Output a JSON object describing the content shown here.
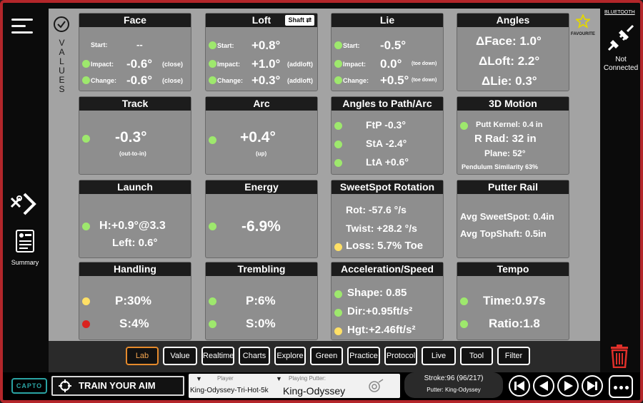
{
  "values_label": "VALUES",
  "summary_label": "Summary",
  "right": {
    "bluetooth_label": "BLUETOOTH",
    "favourite_label": "FAVOURITE",
    "connection_status": "Not Connected"
  },
  "face": {
    "title": "Face",
    "start_label": "Start:",
    "start_value": "--",
    "impact_label": "Impact:",
    "impact_value": "-0.6°",
    "impact_note": "(close)",
    "change_label": "Change:",
    "change_value": "-0.6°",
    "change_note": "(close)"
  },
  "loft": {
    "title": "Loft",
    "shaft_button": "Shaft ⇄",
    "start_label": "Start:",
    "start_value": "+0.8°",
    "impact_label": "Impact:",
    "impact_value": "+1.0°",
    "impact_note": "(addloft)",
    "change_label": "Change:",
    "change_value": "+0.3°",
    "change_note": "(addloft)"
  },
  "lie": {
    "title": "Lie",
    "start_label": "Start:",
    "start_value": "-0.5°",
    "impact_label": "Impact:",
    "impact_value": "0.0°",
    "impact_note": "(toe down)",
    "change_label": "Change:",
    "change_value": "+0.5°",
    "change_note": "(toe down)"
  },
  "angles": {
    "title": "Angles",
    "face": "ΔFace: 1.0°",
    "loft": "ΔLoft: 2.2°",
    "lie": "ΔLie: 0.3°"
  },
  "track": {
    "title": "Track",
    "value": "-0.3°",
    "note": "(out-to-in)"
  },
  "arc": {
    "title": "Arc",
    "value": "+0.4°",
    "note": "(up)"
  },
  "angles_path": {
    "title": "Angles to Path/Arc",
    "ftp": "FtP -0.3°",
    "sta": "StA -2.4°",
    "lta": "LtA +0.6°"
  },
  "motion": {
    "title": "3D Motion",
    "kernel": "Putt Kernel: 0.4 in",
    "rrad": "R Rad: 32 in",
    "plane": "Plane: 52°",
    "similarity": "Pendulum Similarity 63%"
  },
  "launch": {
    "title": "Launch",
    "h": "H:+0.9°@3.3",
    "left": "Left: 0.6°"
  },
  "energy": {
    "title": "Energy",
    "value": "-6.9%"
  },
  "sweetspot": {
    "title": "SweetSpot Rotation",
    "rot": "Rot: -57.6 °/s",
    "twist": "Twist: +28.2 °/s",
    "loss": "Loss: 5.7% Toe"
  },
  "rail": {
    "title": "Putter Rail",
    "avg_sweet": "Avg SweetSpot: 0.4in",
    "avg_top": "Avg TopShaft: 0.5in"
  },
  "handling": {
    "title": "Handling",
    "p": "P:30%",
    "s": "S:4%"
  },
  "trembling": {
    "title": "Trembling",
    "p": "P:6%",
    "s": "S:0%"
  },
  "accel": {
    "title": "Acceleration/Speed",
    "shape": "Shape: 0.85",
    "dir": "Dir:+0.95ft/s²",
    "hgt": "Hgt:+2.46ft/s²"
  },
  "tempo": {
    "title": "Tempo",
    "time": "Time:0.97s",
    "ratio": "Ratio:1.8"
  },
  "tabs": [
    "Lab",
    "Value",
    "Realtime",
    "Charts",
    "Explore",
    "Green",
    "Practice",
    "Protocol",
    "Live",
    "Tool",
    "Filter"
  ],
  "footer": {
    "logo": "CAPTO",
    "aim_button": "TRAIN YOUR AIM",
    "player_label": "Player",
    "player_value": "King-Odyssey-Tri-Hot-5k",
    "putter_label": "Playing Putter:",
    "putter_value": "King-Odyssey",
    "stroke": "Stroke:96 (96/217)",
    "putter": "Putter: King-Odyssey"
  }
}
